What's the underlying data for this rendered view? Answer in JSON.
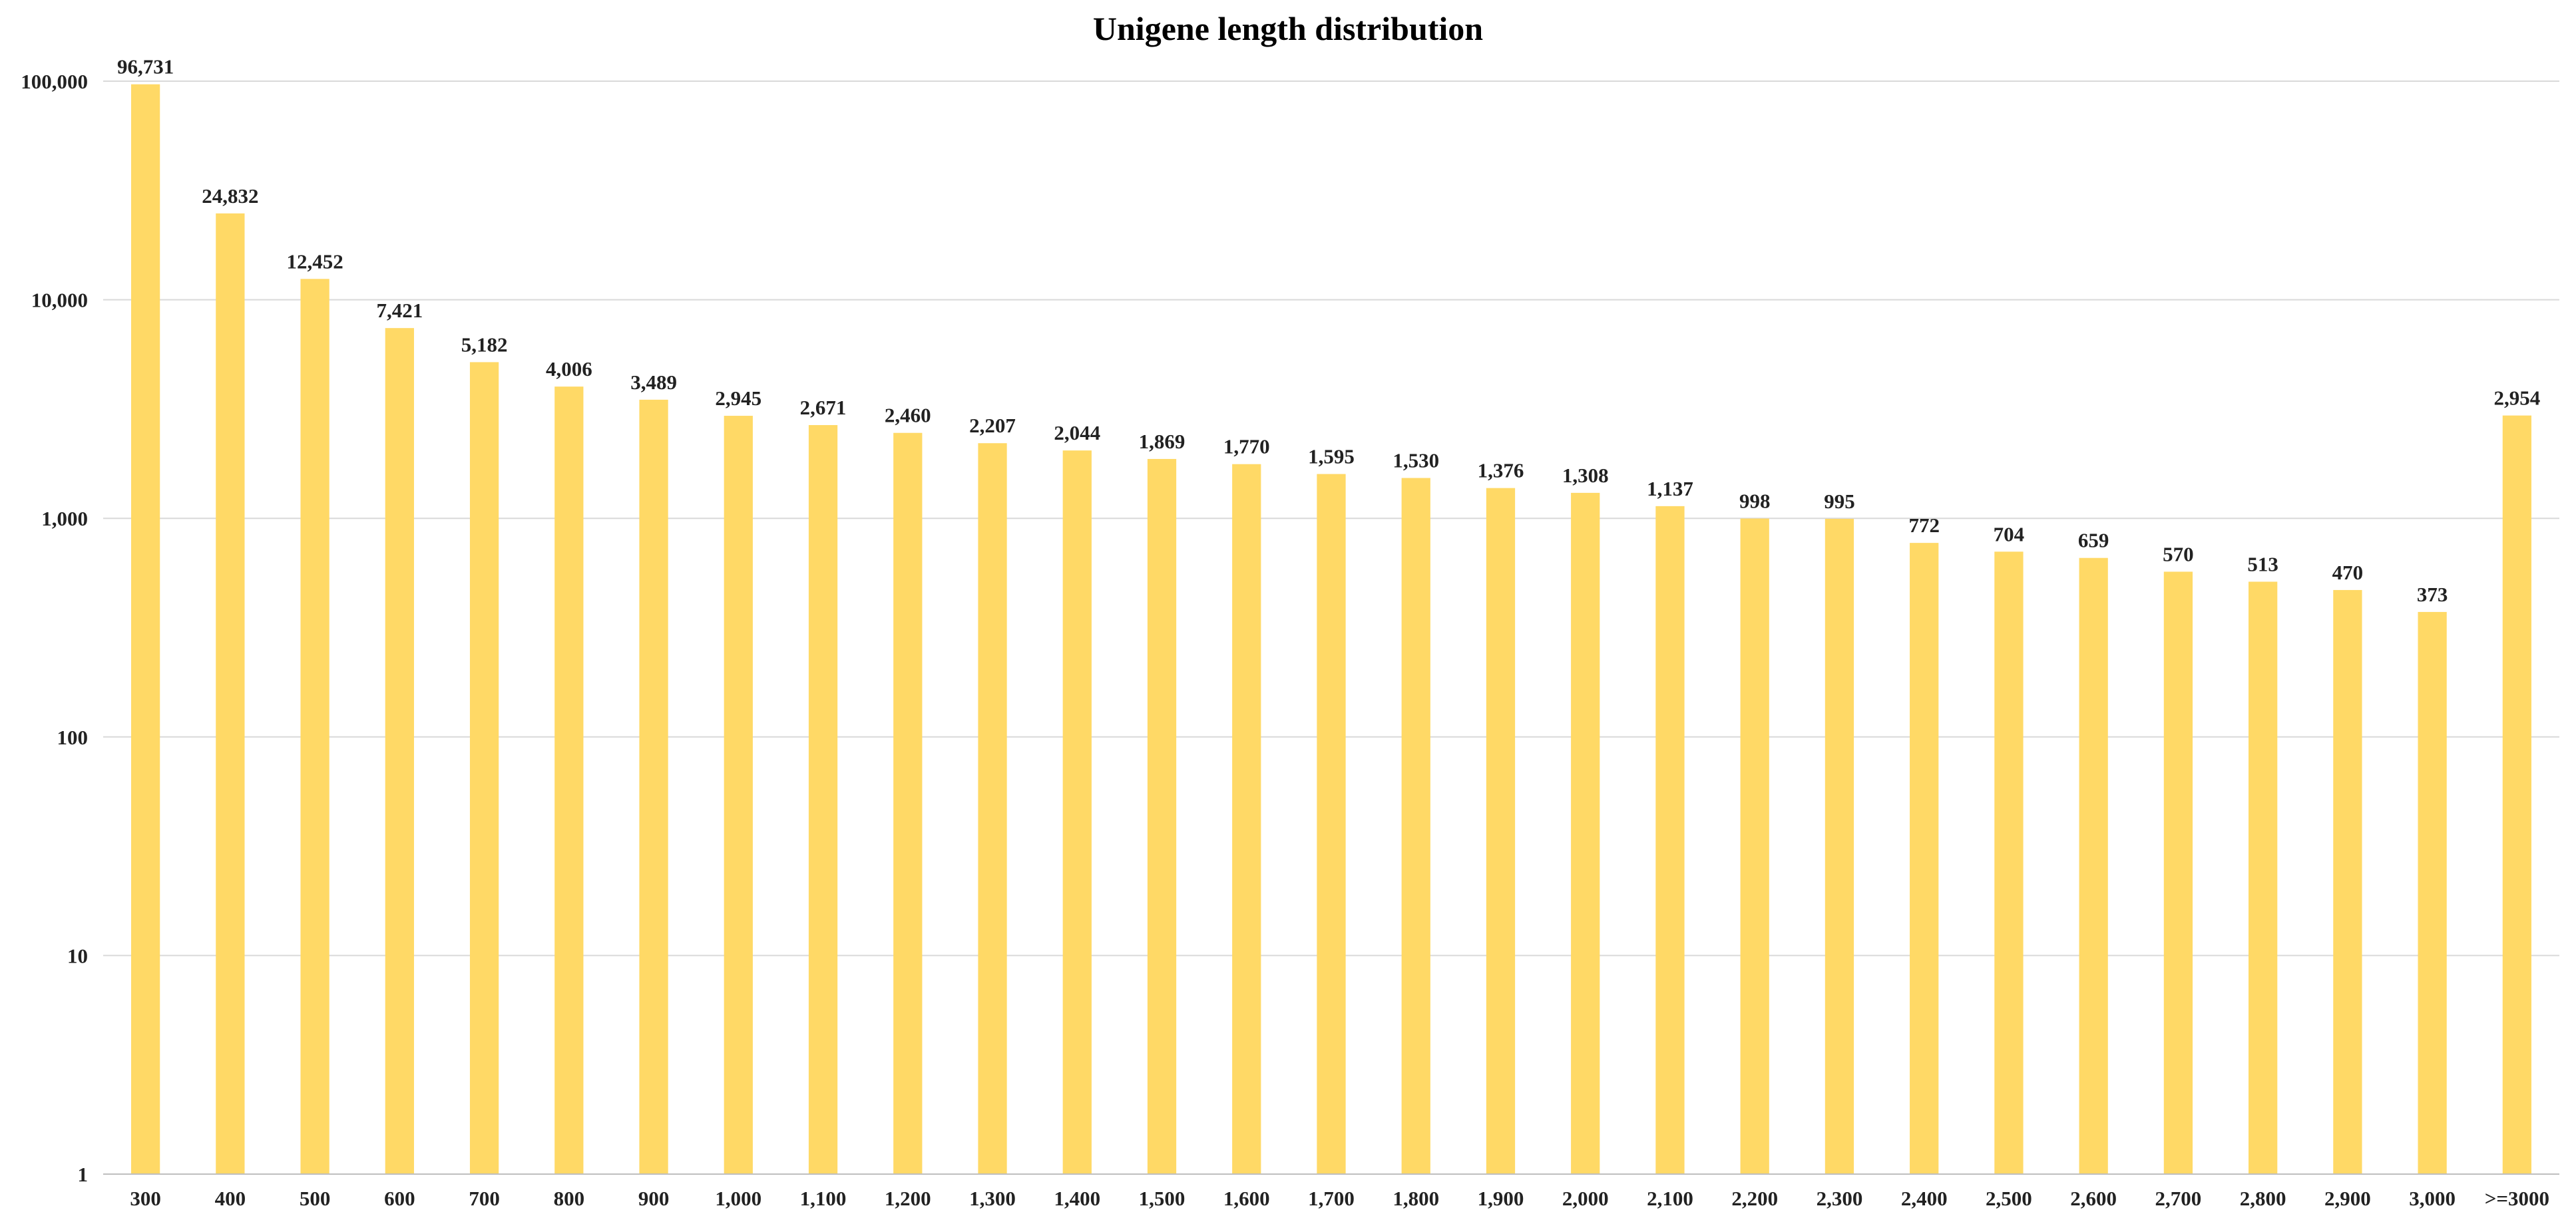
{
  "chart_data": {
    "type": "bar",
    "title": "Unigene length distribution",
    "xlabel": "",
    "ylabel": "",
    "yscale": "log",
    "ylim": [
      1,
      100000
    ],
    "yticks": [
      "1",
      "10",
      "100",
      "1,000",
      "10,000",
      "100,000"
    ],
    "yticks_values": [
      1,
      10,
      100,
      1000,
      10000,
      100000
    ],
    "grid": true,
    "legend": "none",
    "bar_color": "#FFD966",
    "categories": [
      "300",
      "400",
      "500",
      "600",
      "700",
      "800",
      "900",
      "1,000",
      "1,100",
      "1,200",
      "1,300",
      "1,400",
      "1,500",
      "1,600",
      "1,700",
      "1,800",
      "1,900",
      "2,000",
      "2,100",
      "2,200",
      "2,300",
      "2,400",
      "2,500",
      "2,600",
      "2,700",
      "2,800",
      "2,900",
      "3,000",
      ">=3000"
    ],
    "values": [
      96731,
      24832,
      12452,
      7421,
      5182,
      4006,
      3489,
      2945,
      2671,
      2460,
      2207,
      2044,
      1869,
      1770,
      1595,
      1530,
      1376,
      1308,
      1137,
      998,
      995,
      772,
      704,
      659,
      570,
      513,
      470,
      373,
      2954
    ],
    "data_labels": [
      "96,731",
      "24,832",
      "12,452",
      "7,421",
      "5,182",
      "4,006",
      "3,489",
      "2,945",
      "2,671",
      "2,460",
      "2,207",
      "2,044",
      "1,869",
      "1,770",
      "1,595",
      "1,530",
      "1,376",
      "1,308",
      "1,137",
      "998",
      "995",
      "772",
      "704",
      "659",
      "570",
      "513",
      "470",
      "373",
      "2,954"
    ]
  }
}
